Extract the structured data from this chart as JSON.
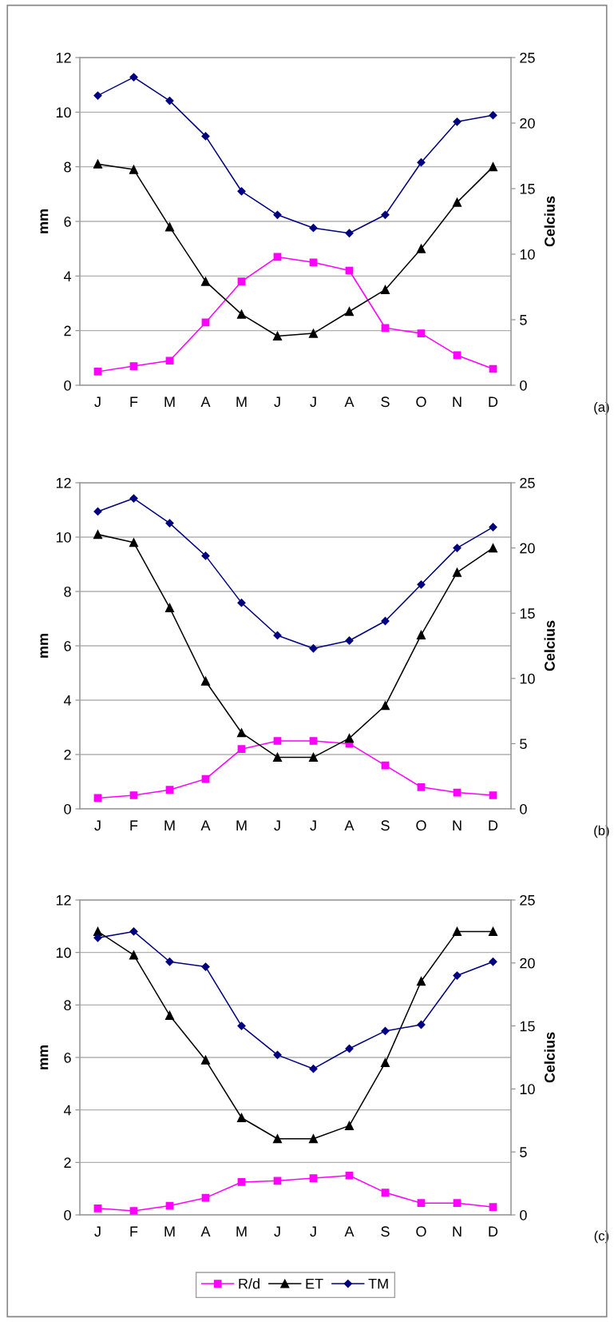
{
  "chart_data": [
    {
      "type": "line",
      "categories": [
        "J",
        "F",
        "M",
        "A",
        "M",
        "J",
        "J",
        "A",
        "S",
        "O",
        "N",
        "D"
      ],
      "ylabel": "mm",
      "y2label": "Celcius",
      "ylim": [
        0,
        12
      ],
      "yticks": [
        0,
        2,
        4,
        6,
        8,
        10,
        12
      ],
      "y2lim": [
        0,
        25
      ],
      "y2ticks": [
        0,
        5,
        10,
        15,
        20,
        25
      ],
      "grid": "y",
      "legend": false,
      "annotations": [
        "(a)"
      ],
      "series": [
        {
          "color": "#ff00ff",
          "marker": "square",
          "values": [
            0.5,
            0.7,
            0.9,
            2.3,
            3.8,
            4.7,
            4.5,
            4.2,
            2.1,
            1.9,
            1.1,
            0.6
          ]
        },
        {
          "color": "#000000",
          "marker": "triangle",
          "values": [
            8.1,
            7.9,
            5.8,
            3.8,
            2.6,
            1.8,
            1.9,
            2.7,
            3.5,
            5.0,
            6.7,
            8.0
          ]
        },
        {
          "color": "#000080",
          "marker": "diamond",
          "axis": "y2",
          "values": [
            22.1,
            23.5,
            21.7,
            19.0,
            14.8,
            13.0,
            12.0,
            11.6,
            13.0,
            17.0,
            20.1,
            20.6
          ]
        }
      ]
    },
    {
      "type": "line",
      "categories": [
        "J",
        "F",
        "M",
        "A",
        "M",
        "J",
        "J",
        "A",
        "S",
        "O",
        "N",
        "D"
      ],
      "ylabel": "mm",
      "y2label": "Celcius",
      "ylim": [
        0,
        12
      ],
      "yticks": [
        0,
        2,
        4,
        6,
        8,
        10,
        12
      ],
      "y2lim": [
        0,
        25
      ],
      "y2ticks": [
        0,
        5,
        10,
        15,
        20,
        25
      ],
      "grid": "y",
      "legend": false,
      "annotations": [
        "(b)"
      ],
      "series": [
        {
          "color": "#ff00ff",
          "marker": "square",
          "values": [
            0.4,
            0.5,
            0.7,
            1.1,
            2.2,
            2.5,
            2.5,
            2.4,
            1.6,
            0.8,
            0.6,
            0.5
          ]
        },
        {
          "color": "#000000",
          "marker": "triangle",
          "values": [
            10.1,
            9.8,
            7.4,
            4.7,
            2.8,
            1.9,
            1.9,
            2.6,
            3.8,
            6.4,
            8.7,
            9.6
          ]
        },
        {
          "color": "#000080",
          "marker": "diamond",
          "axis": "y2",
          "values": [
            22.8,
            23.8,
            21.9,
            19.4,
            15.8,
            13.3,
            12.3,
            12.9,
            14.4,
            17.2,
            20.0,
            21.6
          ]
        }
      ]
    },
    {
      "type": "line",
      "categories": [
        "J",
        "F",
        "M",
        "A",
        "M",
        "J",
        "J",
        "A",
        "S",
        "O",
        "N",
        "D"
      ],
      "ylabel": "mm",
      "y2label": "Celcius",
      "ylim": [
        0,
        12
      ],
      "yticks": [
        0,
        2,
        4,
        6,
        8,
        10,
        12
      ],
      "y2lim": [
        0,
        25
      ],
      "y2ticks": [
        0,
        5,
        10,
        15,
        20,
        25
      ],
      "grid": "y",
      "legend": "bottom",
      "annotations": [
        "(c)"
      ],
      "series": [
        {
          "name": "R/d",
          "color": "#ff00ff",
          "marker": "square",
          "values": [
            0.25,
            0.15,
            0.35,
            0.65,
            1.25,
            1.3,
            1.4,
            1.5,
            0.85,
            0.45,
            0.45,
            0.3
          ]
        },
        {
          "name": "ET",
          "color": "#000000",
          "marker": "triangle",
          "values": [
            10.8,
            9.9,
            7.6,
            5.9,
            3.7,
            2.9,
            2.9,
            3.4,
            5.8,
            8.9,
            10.8,
            10.8
          ]
        },
        {
          "name": "TM",
          "color": "#000080",
          "marker": "diamond",
          "axis": "y2",
          "values": [
            22.0,
            22.5,
            20.1,
            19.7,
            15.0,
            12.7,
            11.6,
            13.2,
            14.6,
            15.1,
            19.0,
            20.1
          ]
        }
      ]
    }
  ]
}
